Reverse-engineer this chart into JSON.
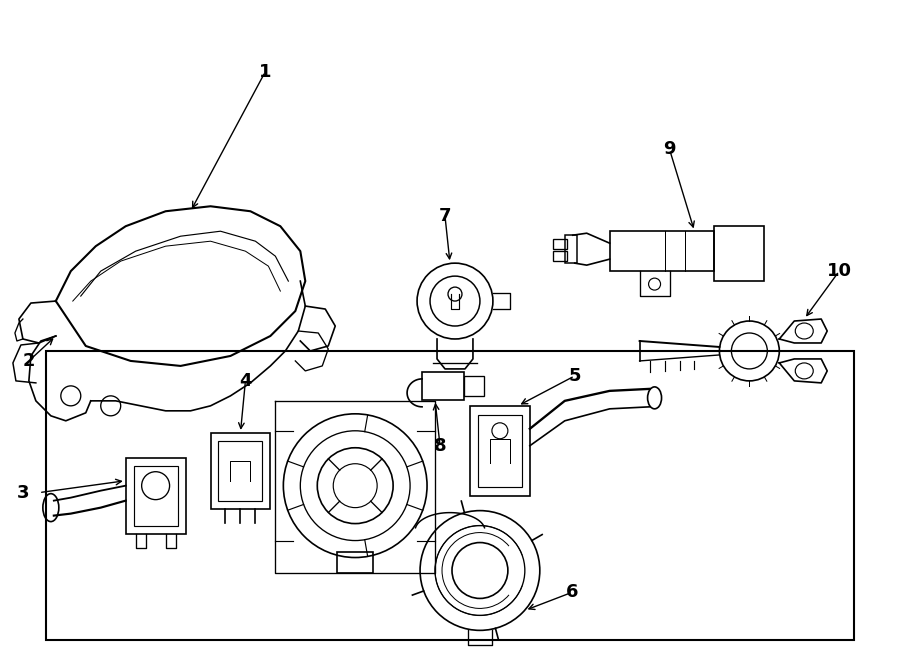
{
  "background_color": "#ffffff",
  "line_color": "#000000",
  "text_color": "#000000",
  "fig_width": 9.0,
  "fig_height": 6.61,
  "dpi": 100,
  "label_fontsize": 13,
  "lw": 1.2
}
